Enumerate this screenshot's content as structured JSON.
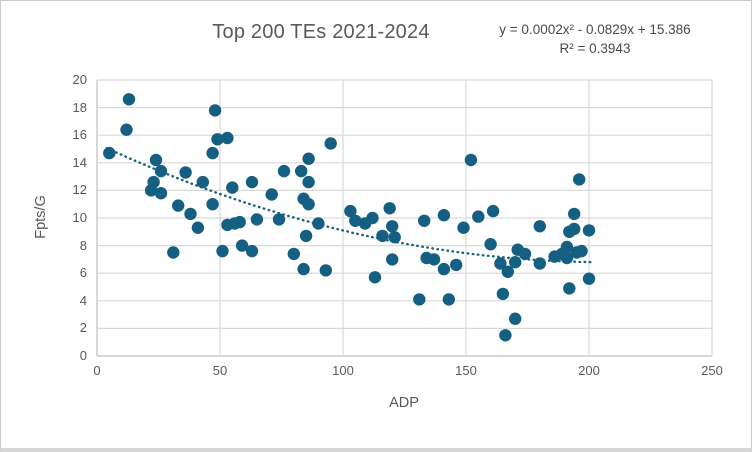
{
  "chart_data": {
    "type": "scatter",
    "title": "Top 200 TEs 2021-2024",
    "annotation": {
      "equation": "y = 0.0002x² - 0.0829x + 15.386",
      "r_squared": "R² = 0.3943"
    },
    "xlabel": "ADP",
    "ylabel": "Fpts/G",
    "xlim": [
      0,
      250
    ],
    "ylim": [
      0,
      20
    ],
    "xticks": [
      0,
      50,
      100,
      150,
      200,
      250
    ],
    "yticks": [
      0,
      2,
      4,
      6,
      8,
      10,
      12,
      14,
      16,
      18,
      20
    ],
    "grid": true,
    "legend": "none",
    "colors": {
      "point": "#156082",
      "trendline": "#156082",
      "grid": "#d9d9d9",
      "axis": "#bfbfbf",
      "text": "#595959",
      "annotation_text": "#4a4a4a"
    },
    "trendline": {
      "kind": "polynomial-order-2",
      "coefficients": {
        "a": 0.0002,
        "b": -0.0829,
        "c": 15.386
      },
      "r2": 0.3943,
      "x_range": [
        4,
        201
      ],
      "style": "dotted"
    },
    "points": [
      [
        5,
        14.7
      ],
      [
        12,
        16.4
      ],
      [
        13,
        18.6
      ],
      [
        22,
        12.0
      ],
      [
        23,
        12.6
      ],
      [
        24,
        14.2
      ],
      [
        26,
        13.4
      ],
      [
        26,
        11.8
      ],
      [
        31,
        7.5
      ],
      [
        33,
        10.9
      ],
      [
        36,
        13.3
      ],
      [
        38,
        10.3
      ],
      [
        41,
        9.3
      ],
      [
        43,
        12.6
      ],
      [
        47,
        14.7
      ],
      [
        47,
        11.0
      ],
      [
        48,
        17.8
      ],
      [
        49,
        15.7
      ],
      [
        51,
        7.6
      ],
      [
        53,
        15.8
      ],
      [
        53,
        9.5
      ],
      [
        55,
        12.2
      ],
      [
        56,
        9.6
      ],
      [
        58,
        9.7
      ],
      [
        59,
        8.0
      ],
      [
        63,
        12.6
      ],
      [
        63,
        7.6
      ],
      [
        65,
        9.9
      ],
      [
        71,
        11.7
      ],
      [
        74,
        9.9
      ],
      [
        76,
        13.4
      ],
      [
        80,
        7.4
      ],
      [
        83,
        13.4
      ],
      [
        84,
        11.4
      ],
      [
        84,
        6.3
      ],
      [
        85,
        8.7
      ],
      [
        86,
        14.3
      ],
      [
        86,
        12.6
      ],
      [
        86,
        11.0
      ],
      [
        90,
        9.6
      ],
      [
        93,
        6.2
      ],
      [
        95,
        15.4
      ],
      [
        103,
        10.5
      ],
      [
        105,
        9.8
      ],
      [
        109,
        9.6
      ],
      [
        112,
        10.0
      ],
      [
        113,
        5.7
      ],
      [
        116,
        8.7
      ],
      [
        119,
        10.7
      ],
      [
        120,
        9.4
      ],
      [
        120,
        7.0
      ],
      [
        121,
        8.6
      ],
      [
        131,
        4.1
      ],
      [
        133,
        9.8
      ],
      [
        134,
        7.1
      ],
      [
        137,
        7.0
      ],
      [
        141,
        10.2
      ],
      [
        141,
        6.3
      ],
      [
        143,
        4.1
      ],
      [
        146,
        6.6
      ],
      [
        149,
        9.3
      ],
      [
        152,
        14.2
      ],
      [
        155,
        10.1
      ],
      [
        160,
        8.1
      ],
      [
        161,
        10.5
      ],
      [
        164,
        6.7
      ],
      [
        165,
        4.5
      ],
      [
        166,
        1.5
      ],
      [
        167,
        6.1
      ],
      [
        170,
        6.8
      ],
      [
        170,
        2.7
      ],
      [
        171,
        7.7
      ],
      [
        174,
        7.4
      ],
      [
        180,
        9.4
      ],
      [
        180,
        6.7
      ],
      [
        186,
        7.2
      ],
      [
        189,
        7.4
      ],
      [
        191,
        7.1
      ],
      [
        191,
        7.9
      ],
      [
        192,
        9.0
      ],
      [
        192,
        4.9
      ],
      [
        194,
        9.2
      ],
      [
        194,
        10.3
      ],
      [
        195,
        7.5
      ],
      [
        196,
        12.8
      ],
      [
        197,
        7.6
      ],
      [
        200,
        9.1
      ],
      [
        200,
        5.6
      ]
    ]
  }
}
